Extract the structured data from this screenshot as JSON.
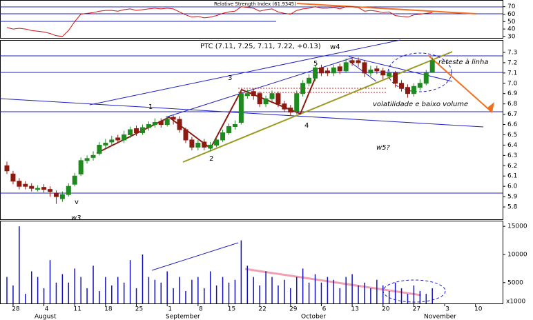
{
  "chart_data": {
    "type": "candlestick",
    "title": "PTC (7.11, 7.25, 7.11, 7.22, +0.13)",
    "x": [
      0,
      1,
      2,
      3,
      4,
      5,
      6,
      7,
      8,
      9,
      10,
      11,
      12,
      13,
      14,
      15,
      16,
      17,
      18,
      19,
      20,
      21,
      22,
      23,
      24,
      25,
      26,
      27,
      28,
      29,
      30,
      31,
      32,
      33,
      34,
      35,
      36,
      37,
      38,
      39,
      40,
      41,
      42,
      43,
      44,
      45,
      46,
      47,
      48,
      49,
      50,
      51,
      52,
      53,
      54,
      55,
      56,
      57,
      58,
      59,
      60,
      61,
      62,
      63,
      64,
      65,
      66,
      67,
      68,
      69
    ],
    "xlim": [
      -1.12,
      80.4
    ],
    "xticks": [
      {
        "value": 1,
        "label": "28"
      },
      {
        "value": 6,
        "label": "4"
      },
      {
        "value": 11,
        "label": "11"
      },
      {
        "value": 16,
        "label": "18"
      },
      {
        "value": 21,
        "label": "25"
      },
      {
        "value": 26,
        "label": "1"
      },
      {
        "value": 31,
        "label": "8"
      },
      {
        "value": 36,
        "label": "15"
      },
      {
        "value": 41,
        "label": "22"
      },
      {
        "value": 46,
        "label": "29"
      },
      {
        "value": 51,
        "label": "6"
      },
      {
        "value": 56,
        "label": "13"
      },
      {
        "value": 61,
        "label": "20"
      },
      {
        "value": 66,
        "label": "27"
      },
      {
        "value": 71,
        "label": "3"
      },
      {
        "value": 76,
        "label": "10"
      }
    ],
    "months": [
      "August",
      "September",
      "October",
      "November"
    ],
    "open": [
      6.2,
      6.12,
      6.05,
      6.02,
      6.0,
      5.97,
      5.99,
      5.97,
      5.93,
      5.88,
      5.92,
      6.02,
      6.12,
      6.25,
      6.28,
      6.32,
      6.4,
      6.43,
      6.47,
      6.45,
      6.5,
      6.56,
      6.52,
      6.57,
      6.6,
      6.63,
      6.6,
      6.67,
      6.65,
      6.55,
      6.45,
      6.38,
      6.43,
      6.37,
      6.4,
      6.45,
      6.52,
      6.58,
      6.62,
      6.88,
      6.92,
      6.9,
      6.8,
      6.85,
      6.9,
      6.8,
      6.76,
      6.73,
      6.9,
      7.0,
      7.05,
      7.15,
      7.12,
      7.1,
      7.16,
      7.12,
      7.22,
      7.22,
      7.2,
      7.1,
      7.14,
      7.12,
      7.07,
      7.1,
      7.0,
      6.96,
      6.9,
      6.96,
      7.0,
      7.11
    ],
    "high": [
      6.24,
      6.15,
      6.08,
      6.05,
      6.03,
      6.01,
      6.02,
      6.0,
      5.96,
      5.95,
      6.03,
      6.13,
      6.28,
      6.3,
      6.34,
      6.43,
      6.46,
      6.49,
      6.5,
      6.54,
      6.58,
      6.59,
      6.6,
      6.63,
      6.66,
      6.66,
      6.68,
      6.69,
      6.68,
      6.57,
      6.48,
      6.45,
      6.46,
      6.43,
      6.48,
      6.55,
      6.61,
      6.64,
      6.93,
      6.94,
      6.95,
      6.92,
      6.88,
      6.93,
      6.92,
      6.83,
      6.79,
      6.93,
      7.03,
      7.09,
      7.18,
      7.18,
      7.15,
      7.18,
      7.19,
      7.24,
      7.25,
      7.25,
      7.22,
      7.17,
      7.17,
      7.15,
      7.13,
      7.12,
      7.03,
      6.99,
      7.0,
      7.04,
      7.13,
      7.25
    ],
    "low": [
      6.12,
      6.02,
      5.97,
      5.97,
      5.95,
      5.95,
      5.94,
      5.9,
      5.83,
      5.85,
      5.9,
      6.0,
      6.1,
      6.22,
      6.25,
      6.3,
      6.37,
      6.4,
      6.42,
      6.42,
      6.47,
      6.49,
      6.5,
      6.54,
      6.57,
      6.57,
      6.58,
      6.6,
      6.52,
      6.42,
      6.35,
      6.35,
      6.35,
      6.34,
      6.38,
      6.43,
      6.5,
      6.55,
      6.6,
      6.85,
      6.84,
      6.77,
      6.77,
      6.82,
      6.77,
      6.72,
      6.69,
      6.7,
      6.87,
      6.97,
      7.02,
      7.07,
      7.07,
      7.07,
      7.09,
      7.1,
      7.17,
      7.16,
      7.06,
      7.07,
      7.09,
      7.04,
      7.04,
      6.96,
      6.92,
      6.86,
      6.87,
      6.93,
      6.98,
      7.11
    ],
    "close": [
      6.15,
      6.05,
      6.0,
      6.0,
      5.98,
      5.98,
      5.97,
      5.95,
      5.9,
      5.92,
      6.0,
      6.1,
      6.25,
      6.27,
      6.3,
      6.4,
      6.42,
      6.45,
      6.45,
      6.5,
      6.55,
      6.52,
      6.57,
      6.6,
      6.62,
      6.6,
      6.65,
      6.65,
      6.55,
      6.45,
      6.38,
      6.42,
      6.38,
      6.4,
      6.45,
      6.52,
      6.58,
      6.6,
      6.9,
      6.9,
      6.88,
      6.8,
      6.85,
      6.9,
      6.8,
      6.75,
      6.72,
      6.9,
      7.0,
      7.05,
      7.15,
      7.1,
      7.1,
      7.15,
      7.12,
      7.2,
      7.2,
      7.2,
      7.1,
      7.13,
      7.12,
      7.08,
      7.1,
      7.0,
      6.95,
      6.9,
      6.97,
      7.0,
      7.1,
      7.22
    ],
    "up_color": "#1f8a1f",
    "down_color": "#8b1a10",
    "ylim": [
      5.68,
      7.42
    ],
    "yticks": [
      5.8,
      5.9,
      {
        "value": 6,
        "label": "6.0"
      },
      6.1,
      6.2,
      6.3,
      6.4,
      6.5,
      6.6,
      6.7,
      6.8,
      6.9,
      {
        "value": 7,
        "label": "7.0"
      },
      7.1,
      7.2,
      7.3
    ],
    "rsi": {
      "title": "Relative Strength Index (61.9345)",
      "color": "#d01010",
      "values": [
        42,
        40,
        41,
        40,
        38,
        37,
        36,
        34,
        31,
        30,
        38,
        50,
        60,
        61,
        62,
        64,
        65,
        65,
        64,
        66,
        67,
        65,
        66,
        67,
        68,
        67,
        68,
        67,
        63,
        59,
        56,
        57,
        55,
        56,
        58,
        61,
        63,
        64,
        70,
        69,
        68,
        64,
        66,
        67,
        63,
        61,
        60,
        65,
        67,
        68,
        70,
        68,
        68,
        69,
        67,
        70,
        70,
        69,
        64,
        65,
        64,
        62,
        63,
        58,
        57,
        56,
        59,
        60,
        61,
        62
      ],
      "ylim": [
        28,
        79
      ],
      "yticks": [
        30,
        40,
        50,
        60,
        70
      ]
    },
    "volume": {
      "color": "#1010c0",
      "unit_label": "x1000",
      "values": [
        6000,
        4500,
        15000,
        3000,
        7000,
        6000,
        4000,
        9000,
        5000,
        6500,
        5000,
        7500,
        6000,
        4000,
        8000,
        3500,
        6000,
        4500,
        6000,
        5000,
        9000,
        4000,
        10000,
        6000,
        5500,
        5000,
        7000,
        4000,
        6000,
        3500,
        5500,
        6000,
        4000,
        7000,
        4500,
        6000,
        5000,
        5500,
        12500,
        8000,
        6000,
        4500,
        7000,
        6000,
        4500,
        5500,
        4000,
        6000,
        7500,
        5000,
        6500,
        5000,
        6000,
        5500,
        4000,
        6000,
        6500,
        4500,
        5000,
        4000,
        5500,
        4500,
        3500,
        5000,
        4000,
        3000,
        4500,
        3500,
        3000,
        4000
      ],
      "ylim": [
        1300,
        16000
      ],
      "yticks": [
        5000,
        10000,
        15000
      ]
    },
    "annotations": [
      "w4",
      "5",
      "3",
      "1",
      "4",
      "2",
      "w5?",
      "v",
      "w3",
      "reteste à linha",
      "volatilidade e baixo volume"
    ]
  }
}
